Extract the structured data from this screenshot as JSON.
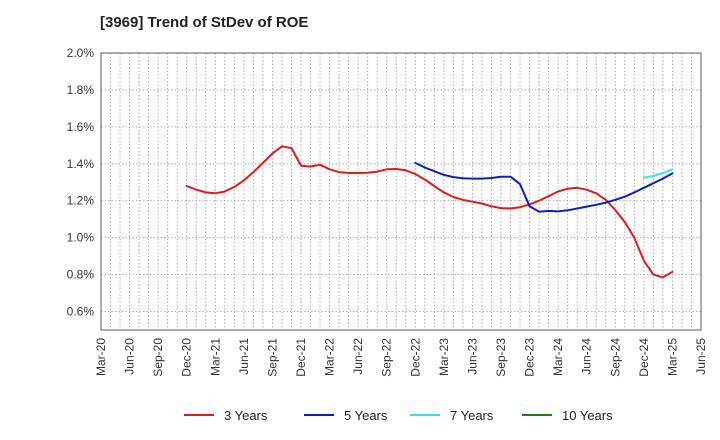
{
  "title": "[3969]  Trend of StDev of ROE",
  "chart_data": {
    "type": "line",
    "title": "[3969]  Trend of StDev of ROE",
    "xlabel": "",
    "ylabel": "",
    "x_ticks": [
      "Mar-20",
      "Jun-20",
      "Sep-20",
      "Dec-20",
      "Mar-21",
      "Jun-21",
      "Sep-21",
      "Dec-21",
      "Mar-22",
      "Jun-22",
      "Sep-22",
      "Dec-22",
      "Mar-23",
      "Jun-23",
      "Sep-23",
      "Dec-23",
      "Mar-24",
      "Jun-24",
      "Sep-24",
      "Dec-24",
      "Mar-25",
      "Jun-25"
    ],
    "y_ticks": [
      "0.6%",
      "0.8%",
      "1.0%",
      "1.2%",
      "1.4%",
      "1.6%",
      "1.8%",
      "2.0%"
    ],
    "ylim": [
      0.5,
      2.0
    ],
    "grid": true,
    "legend_position": "bottom",
    "series": [
      {
        "name": "3 Years",
        "color": "#e31a1c",
        "values": [
          [
            "Dec-20",
            1.28
          ],
          [
            "Jan-21",
            1.26
          ],
          [
            "Feb-21",
            1.245
          ],
          [
            "Mar-21",
            1.24
          ],
          [
            "Apr-21",
            1.25
          ],
          [
            "May-21",
            1.275
          ],
          [
            "Jun-21",
            1.31
          ],
          [
            "Jul-21",
            1.355
          ],
          [
            "Aug-21",
            1.405
          ],
          [
            "Sep-21",
            1.455
          ],
          [
            "Oct-21",
            1.495
          ],
          [
            "Nov-21",
            1.485
          ],
          [
            "Dec-21",
            1.39
          ],
          [
            "Jan-22",
            1.385
          ],
          [
            "Feb-22",
            1.395
          ],
          [
            "Mar-22",
            1.37
          ],
          [
            "Apr-22",
            1.355
          ],
          [
            "May-22",
            1.35
          ],
          [
            "Jun-22",
            1.35
          ],
          [
            "Jul-22",
            1.352
          ],
          [
            "Aug-22",
            1.358
          ],
          [
            "Sep-22",
            1.37
          ],
          [
            "Oct-22",
            1.372
          ],
          [
            "Nov-22",
            1.365
          ],
          [
            "Dec-22",
            1.345
          ],
          [
            "Jan-23",
            1.315
          ],
          [
            "Feb-23",
            1.28
          ],
          [
            "Mar-23",
            1.245
          ],
          [
            "Apr-23",
            1.22
          ],
          [
            "May-23",
            1.205
          ],
          [
            "Jun-23",
            1.195
          ],
          [
            "Jul-23",
            1.185
          ],
          [
            "Aug-23",
            1.17
          ],
          [
            "Sep-23",
            1.16
          ],
          [
            "Oct-23",
            1.158
          ],
          [
            "Nov-23",
            1.165
          ],
          [
            "Dec-23",
            1.18
          ],
          [
            "Jan-24",
            1.2
          ],
          [
            "Feb-24",
            1.225
          ],
          [
            "Mar-24",
            1.25
          ],
          [
            "Apr-24",
            1.265
          ],
          [
            "May-24",
            1.27
          ],
          [
            "Jun-24",
            1.26
          ],
          [
            "Jul-24",
            1.24
          ],
          [
            "Aug-24",
            1.205
          ],
          [
            "Sep-24",
            1.15
          ],
          [
            "Oct-24",
            1.085
          ],
          [
            "Nov-24",
            1.0
          ],
          [
            "Dec-24",
            0.875
          ],
          [
            "Jan-25",
            0.8
          ],
          [
            "Feb-25",
            0.785
          ],
          [
            "Mar-25",
            0.815
          ]
        ]
      },
      {
        "name": "5 Years",
        "color": "#0a1fc4",
        "values": [
          [
            "Dec-22",
            1.405
          ],
          [
            "Jan-23",
            1.38
          ],
          [
            "Feb-23",
            1.36
          ],
          [
            "Mar-23",
            1.34
          ],
          [
            "Apr-23",
            1.328
          ],
          [
            "May-23",
            1.322
          ],
          [
            "Jun-23",
            1.32
          ],
          [
            "Jul-23",
            1.32
          ],
          [
            "Aug-23",
            1.323
          ],
          [
            "Sep-23",
            1.33
          ],
          [
            "Oct-23",
            1.33
          ],
          [
            "Nov-23",
            1.29
          ],
          [
            "Dec-23",
            1.17
          ],
          [
            "Jan-24",
            1.14
          ],
          [
            "Feb-24",
            1.145
          ],
          [
            "Mar-24",
            1.142
          ],
          [
            "Apr-24",
            1.148
          ],
          [
            "May-24",
            1.158
          ],
          [
            "Jun-24",
            1.168
          ],
          [
            "Jul-24",
            1.178
          ],
          [
            "Aug-24",
            1.19
          ],
          [
            "Sep-24",
            1.205
          ],
          [
            "Oct-24",
            1.222
          ],
          [
            "Nov-24",
            1.245
          ],
          [
            "Dec-24",
            1.27
          ],
          [
            "Jan-25",
            1.295
          ],
          [
            "Feb-25",
            1.32
          ],
          [
            "Mar-25",
            1.348
          ]
        ]
      },
      {
        "name": "7 Years",
        "color": "#33e0ef",
        "values": [
          [
            "Dec-24",
            1.325
          ],
          [
            "Jan-25",
            1.335
          ],
          [
            "Feb-25",
            1.35
          ],
          [
            "Mar-25",
            1.37
          ]
        ]
      },
      {
        "name": "10 Years",
        "color": "#1a7f1a",
        "values": []
      }
    ]
  }
}
